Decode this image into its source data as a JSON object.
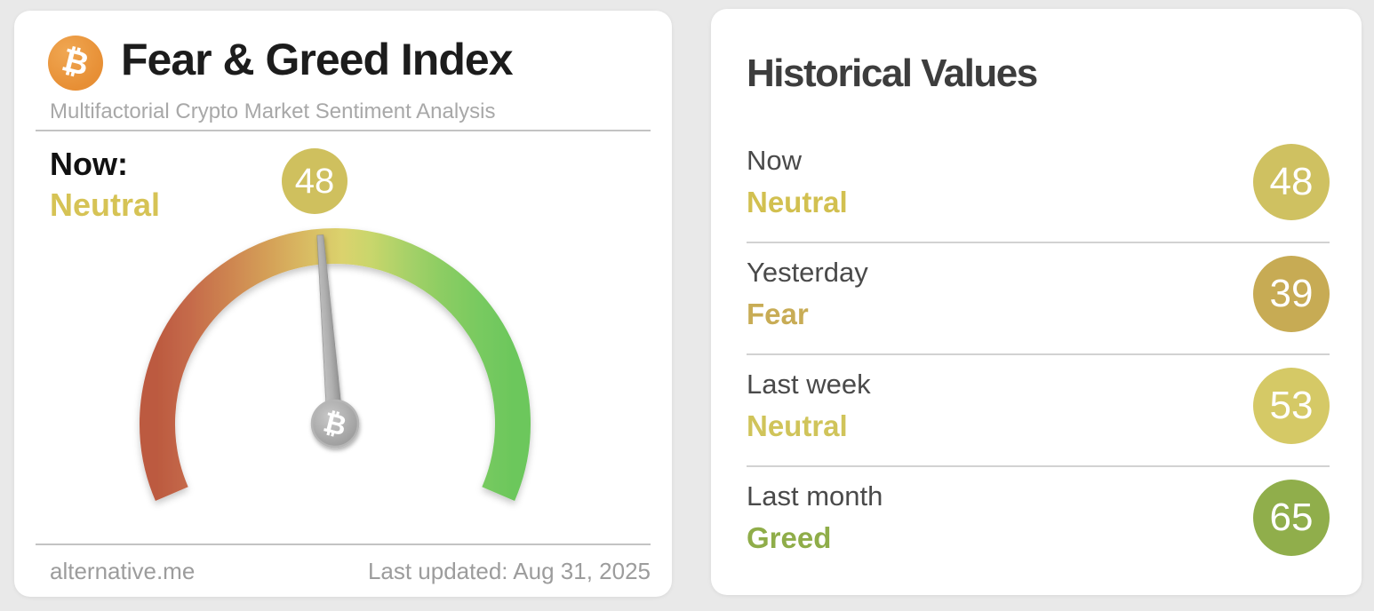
{
  "page": {
    "background_color": "#e9e9e9"
  },
  "fear_greed_card": {
    "logo_symbol": "₿",
    "logo_color": "#e8953c",
    "title": "Fear & Greed Index",
    "subtitle": "Multifactorial Crypto Market Sentiment Analysis",
    "now": {
      "label": "Now:",
      "status": "Neutral",
      "status_color": "#d6c355"
    },
    "gauge_badge": {
      "value": "48",
      "color": "#cfc05e"
    },
    "hub_symbol": "₿",
    "footer": {
      "source_link": "alternative.me",
      "last_updated": "Last updated: Aug 31, 2025"
    }
  },
  "historical_card": {
    "title": "Historical Values",
    "rows": [
      {
        "label": "Now",
        "status": "Neutral",
        "status_color": "#d2c050",
        "value": "48",
        "badge_color": "#cfc161"
      },
      {
        "label": "Yesterday",
        "status": "Fear",
        "status_color": "#c8ac55",
        "value": "39",
        "badge_color": "#c7ab54"
      },
      {
        "label": "Last week",
        "status": "Neutral",
        "status_color": "#d0c45a",
        "value": "53",
        "badge_color": "#d5c966"
      },
      {
        "label": "Last month",
        "status": "Greed",
        "status_color": "#8fad49",
        "value": "65",
        "badge_color": "#90ae4b"
      }
    ]
  },
  "chart_data": {
    "type": "gauge",
    "title": "Fear & Greed Index",
    "range": [
      0,
      100
    ],
    "arc_sweep_degrees": 226.6,
    "current": {
      "value": 48,
      "classification": "Neutral"
    },
    "needle_color": "#a3a3a3",
    "arc_gradient": [
      "#bc5a40",
      "#c66c4b",
      "#cf8951",
      "#d6a75a",
      "#d9c065",
      "#dbd26d",
      "#c9d66c",
      "#a8d168",
      "#8ccd63",
      "#79ca60",
      "#6cc75c"
    ],
    "history": [
      {
        "period": "Now",
        "value": 48,
        "classification": "Neutral"
      },
      {
        "period": "Yesterday",
        "value": 39,
        "classification": "Fear"
      },
      {
        "period": "Last week",
        "value": 53,
        "classification": "Neutral"
      },
      {
        "period": "Last month",
        "value": 65,
        "classification": "Greed"
      }
    ]
  }
}
